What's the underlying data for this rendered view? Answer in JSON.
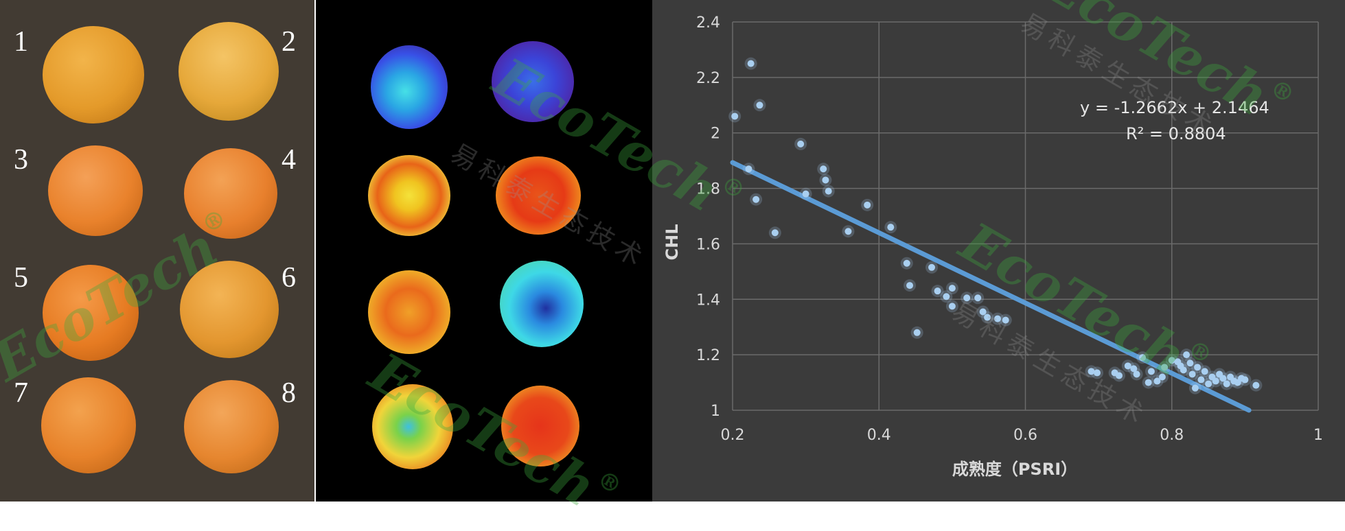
{
  "photo_panel": {
    "labels": [
      "1",
      "2",
      "3",
      "4",
      "5",
      "6",
      "7",
      "8"
    ]
  },
  "watermark": {
    "brand": "EcoTech",
    "registered": "®",
    "chinese": "易科泰生态技术"
  },
  "colors": {
    "chart_background": "#3b3b3b",
    "point_color": "#a9cff0",
    "trendline_color": "#5b9bd5",
    "grid_color": "#6b6b6b",
    "text_color": "#d9d9d9"
  },
  "chart_data": {
    "type": "scatter",
    "xlabel": "成熟度（PSRI）",
    "ylabel": "CHL",
    "xlim": [
      0.2,
      1
    ],
    "ylim": [
      1,
      2.4
    ],
    "x_ticks": [
      "0.2",
      "0.4",
      "0.6",
      "0.8",
      "1"
    ],
    "y_ticks": [
      "1",
      "1.2",
      "1.4",
      "1.6",
      "1.8",
      "2",
      "2.2",
      "2.4"
    ],
    "grid": true,
    "trendline": {
      "slope": -1.2662,
      "intercept": 2.1464,
      "equation": "y = -1.2662x + 2.1464",
      "r2": "R² = 0.8804"
    },
    "points": [
      [
        0.203,
        2.06
      ],
      [
        0.225,
        2.25
      ],
      [
        0.237,
        2.1
      ],
      [
        0.222,
        1.87
      ],
      [
        0.232,
        1.76
      ],
      [
        0.258,
        1.64
      ],
      [
        0.293,
        1.96
      ],
      [
        0.3,
        1.78
      ],
      [
        0.324,
        1.87
      ],
      [
        0.327,
        1.83
      ],
      [
        0.331,
        1.79
      ],
      [
        0.358,
        1.645
      ],
      [
        0.384,
        1.74
      ],
      [
        0.416,
        1.66
      ],
      [
        0.438,
        1.53
      ],
      [
        0.442,
        1.45
      ],
      [
        0.452,
        1.28
      ],
      [
        0.472,
        1.515
      ],
      [
        0.48,
        1.43
      ],
      [
        0.492,
        1.41
      ],
      [
        0.5,
        1.44
      ],
      [
        0.5,
        1.375
      ],
      [
        0.52,
        1.405
      ],
      [
        0.535,
        1.405
      ],
      [
        0.542,
        1.355
      ],
      [
        0.548,
        1.335
      ],
      [
        0.562,
        1.33
      ],
      [
        0.573,
        1.325
      ],
      [
        0.69,
        1.14
      ],
      [
        0.698,
        1.135
      ],
      [
        0.722,
        1.135
      ],
      [
        0.728,
        1.125
      ],
      [
        0.74,
        1.16
      ],
      [
        0.748,
        1.15
      ],
      [
        0.752,
        1.13
      ],
      [
        0.76,
        1.19
      ],
      [
        0.768,
        1.1
      ],
      [
        0.772,
        1.14
      ],
      [
        0.78,
        1.105
      ],
      [
        0.787,
        1.12
      ],
      [
        0.79,
        1.155
      ],
      [
        0.8,
        1.18
      ],
      [
        0.808,
        1.175
      ],
      [
        0.812,
        1.16
      ],
      [
        0.816,
        1.145
      ],
      [
        0.82,
        1.2
      ],
      [
        0.825,
        1.17
      ],
      [
        0.828,
        1.13
      ],
      [
        0.832,
        1.08
      ],
      [
        0.835,
        1.155
      ],
      [
        0.84,
        1.11
      ],
      [
        0.845,
        1.14
      ],
      [
        0.85,
        1.095
      ],
      [
        0.855,
        1.12
      ],
      [
        0.86,
        1.105
      ],
      [
        0.865,
        1.13
      ],
      [
        0.87,
        1.115
      ],
      [
        0.875,
        1.095
      ],
      [
        0.88,
        1.12
      ],
      [
        0.885,
        1.105
      ],
      [
        0.89,
        1.1
      ],
      [
        0.895,
        1.115
      ],
      [
        0.9,
        1.11
      ],
      [
        0.915,
        1.09
      ]
    ]
  }
}
